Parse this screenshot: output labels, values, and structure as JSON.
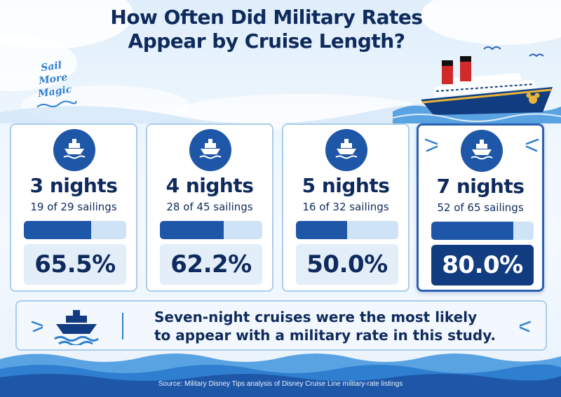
{
  "title_lines": [
    "How Often Did Military Rates",
    "Appear by Cruise Length?"
  ],
  "tagline_lines": [
    "Sail",
    "More Magic"
  ],
  "colors": {
    "navy": "#0f2a5c",
    "accent_blue": "#1f57a8",
    "light_track": "#cfe3f6",
    "highlight_box": "#123c80",
    "card_border": "#a9cdee"
  },
  "icons": {
    "badge": "ship-icon",
    "tagline_underline": "wave-icon",
    "takeaway": "ship-icon",
    "decor": "sparkle-icon"
  },
  "chart_data": {
    "type": "bar",
    "title": "How Often Did Military Rates Appear by Cruise Length?",
    "categories": [
      "3 nights",
      "4 nights",
      "5 nights",
      "7 nights"
    ],
    "series": [
      {
        "values": [
          65.5,
          62.2,
          50.0,
          80.0
        ],
        "labels": [
          "65.5%",
          "62.2%",
          "50.0%",
          "80.0%"
        ],
        "counts": [
          "19 of 29 sailings",
          "28 of 45 sailings",
          "16 of 32 sailings",
          "52 of 65 sailings"
        ]
      }
    ],
    "ylim": [
      0,
      100
    ],
    "highlighted_category": "7 nights",
    "legend": "none",
    "grid": false
  },
  "takeaway_lines": [
    "Seven-night cruises were the most likely",
    "to appear with a military rate in this study."
  ],
  "source": "Source: Military Disney Tips analysis of Disney Cruise Line military-rate listings"
}
